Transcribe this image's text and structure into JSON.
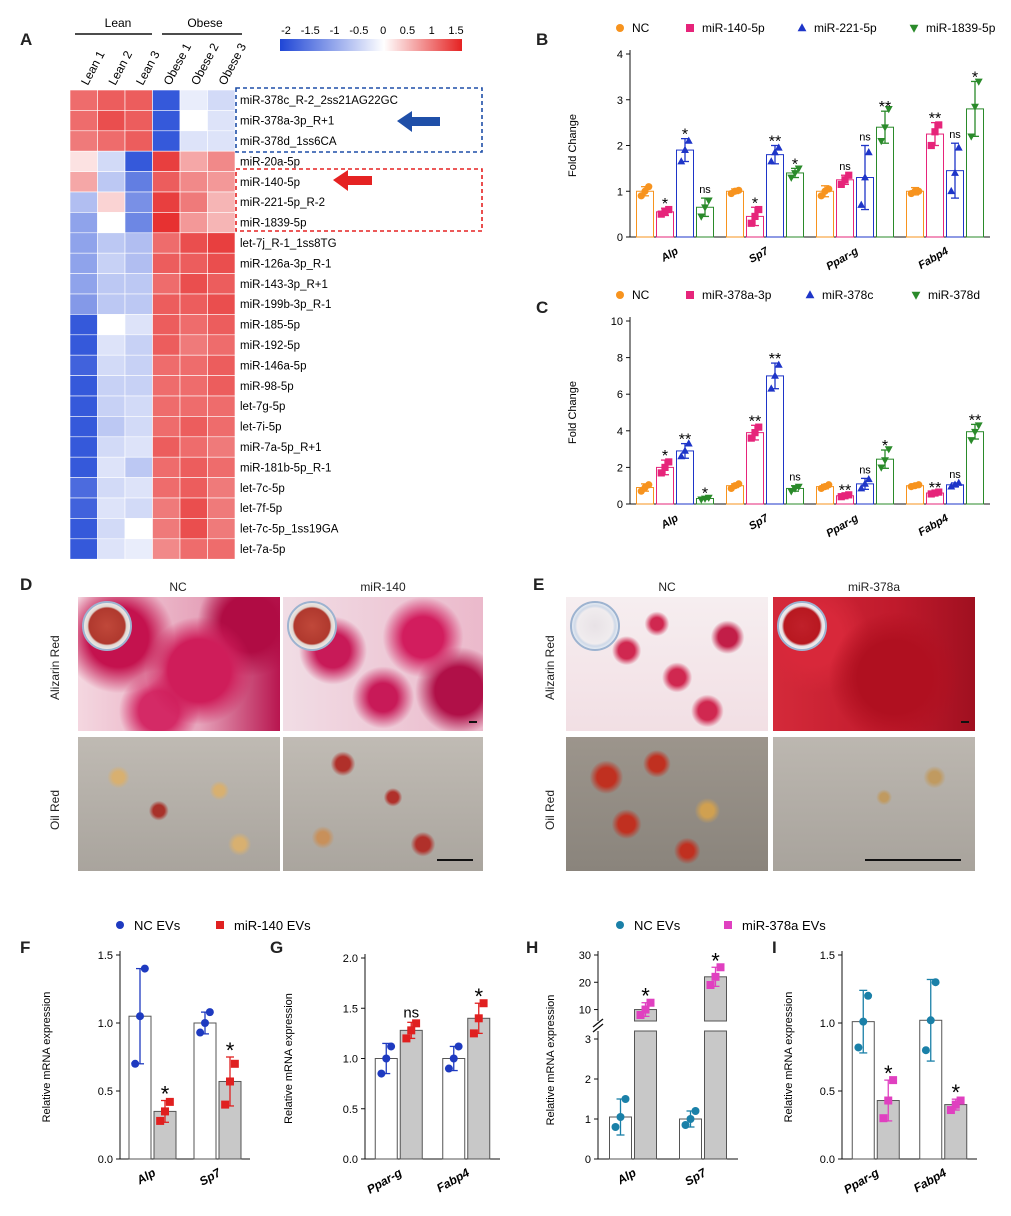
{
  "panel_letters": [
    "A",
    "B",
    "C",
    "D",
    "E",
    "F",
    "G",
    "H",
    "I"
  ],
  "heatmap": {
    "group_labels": [
      "Lean",
      "Obese"
    ],
    "columns": [
      "Lean 1",
      "Lean 2",
      "Lean 3",
      "Obese 1",
      "Obese 2",
      "Obese 3"
    ],
    "scale_ticks": [
      "-2",
      "-1.5",
      "-1",
      "-0.5",
      "0",
      "0.5",
      "1",
      "1.5"
    ],
    "rows": [
      "miR-378c_R-2_2ss21AG22GC",
      "miR-378a-3p_R+1",
      "miR-378d_1ss6CA",
      "miR-20a-5p",
      "miR-140-5p",
      "miR-221-5p_R-2",
      "miR-1839-5p",
      "let-7j_R-1_1ss8TG",
      "miR-126a-3p_R-1",
      "miR-143-3p_R+1",
      "miR-199b-3p_R-1",
      "miR-185-5p",
      "miR-192-5p",
      "miR-146a-5p",
      "miR-98-5p",
      "let-7g-5p",
      "let-7i-5p",
      "miR-7a-5p_R+1",
      "miR-181b-5p_R-1",
      "let-7c-5p",
      "let-7f-5p",
      "let-7c-5p_1ss19GA",
      "let-7a-5p"
    ],
    "values": [
      [
        1.0,
        1.1,
        1.1,
        -1.8,
        -0.2,
        -0.4
      ],
      [
        1.0,
        1.2,
        1.1,
        -1.8,
        0.0,
        -0.3
      ],
      [
        0.9,
        1.0,
        1.1,
        -1.8,
        -0.3,
        -0.3
      ],
      [
        0.2,
        -0.4,
        -1.8,
        1.3,
        0.6,
        0.8
      ],
      [
        0.6,
        -0.6,
        -1.4,
        1.1,
        0.8,
        0.7
      ],
      [
        -0.7,
        0.3,
        -1.2,
        1.3,
        0.9,
        0.5
      ],
      [
        -1.0,
        0.0,
        -1.3,
        1.4,
        0.7,
        0.5
      ],
      [
        -1.0,
        -0.6,
        -0.7,
        1.0,
        1.2,
        1.3
      ],
      [
        -1.0,
        -0.5,
        -0.7,
        1.1,
        1.1,
        1.2
      ],
      [
        -1.0,
        -0.6,
        -0.6,
        1.0,
        1.2,
        1.1
      ],
      [
        -1.1,
        -0.6,
        -0.6,
        1.1,
        1.1,
        1.2
      ],
      [
        -1.8,
        0.0,
        -0.3,
        1.1,
        1.0,
        1.1
      ],
      [
        -1.8,
        -0.3,
        -0.5,
        1.1,
        0.9,
        1.0
      ],
      [
        -1.7,
        -0.4,
        -0.5,
        1.0,
        1.0,
        1.1
      ],
      [
        -1.8,
        -0.5,
        -0.5,
        1.0,
        1.0,
        1.1
      ],
      [
        -1.8,
        -0.5,
        -0.4,
        1.0,
        1.0,
        1.0
      ],
      [
        -1.8,
        -0.6,
        -0.4,
        1.0,
        1.1,
        1.0
      ],
      [
        -1.8,
        -0.4,
        -0.3,
        1.1,
        1.0,
        0.9
      ],
      [
        -1.8,
        -0.3,
        -0.6,
        1.0,
        1.1,
        1.0
      ],
      [
        -1.6,
        -0.4,
        -0.3,
        1.0,
        1.1,
        0.9
      ],
      [
        -1.7,
        -0.3,
        -0.4,
        0.9,
        1.2,
        0.9
      ],
      [
        -1.8,
        -0.4,
        0.0,
        0.9,
        1.2,
        0.9
      ],
      [
        -1.8,
        -0.3,
        -0.2,
        0.8,
        1.0,
        1.0
      ]
    ],
    "colors": {
      "low": "#1f46d6",
      "mid": "#ffffff",
      "high": "#e52222"
    },
    "box_blue_color": "#1f4fa8",
    "box_red_color": "#e52222"
  },
  "photos": {
    "D": {
      "columns": [
        "NC",
        "miR-140"
      ],
      "rows": [
        "Alizarin Red",
        "Oil Red"
      ]
    },
    "E": {
      "columns": [
        "NC",
        "miR-378a"
      ],
      "rows": [
        "Alizarin Red",
        "Oil Red"
      ]
    }
  },
  "chart_data": [
    {
      "panel": "B",
      "type": "bar",
      "ylabel": "Fold Change",
      "ylim": [
        0,
        4
      ],
      "yticks": [
        0,
        1,
        2,
        3,
        4
      ],
      "categories": [
        "Alp",
        "Sp7",
        "Ppar-g",
        "Fabp4"
      ],
      "series": [
        {
          "name": "NC",
          "color": "#f7931e",
          "marker": "circle",
          "values": [
            1.0,
            1.0,
            1.0,
            1.0
          ],
          "err": [
            0.1,
            0.05,
            0.12,
            0.08
          ],
          "points": [
            [
              0.9,
              1.0,
              1.1
            ],
            [
              0.95,
              1.0,
              1.02
            ],
            [
              0.9,
              1.0,
              1.05
            ],
            [
              0.95,
              1.0,
              1.0
            ]
          ],
          "sig": [
            "",
            "",
            "",
            ""
          ]
        },
        {
          "name": "miR-140-5p",
          "color": "#e6247a",
          "marker": "square",
          "values": [
            0.55,
            0.45,
            1.25,
            2.25
          ],
          "err": [
            0.08,
            0.2,
            0.1,
            0.25
          ],
          "points": [
            [
              0.5,
              0.55,
              0.6
            ],
            [
              0.3,
              0.45,
              0.6
            ],
            [
              1.15,
              1.25,
              1.35
            ],
            [
              2.0,
              2.3,
              2.45
            ]
          ],
          "sig": [
            "*",
            "*",
            "ns",
            "**"
          ]
        },
        {
          "name": "miR-221-5p",
          "color": "#1e35c8",
          "marker": "triangle",
          "values": [
            1.9,
            1.8,
            1.3,
            1.45
          ],
          "err": [
            0.25,
            0.2,
            0.7,
            0.6
          ],
          "points": [
            [
              1.65,
              1.9,
              2.1
            ],
            [
              1.65,
              1.85,
              1.95
            ],
            [
              0.7,
              1.3,
              1.85
            ],
            [
              1.0,
              1.4,
              1.95
            ]
          ],
          "sig": [
            "*",
            "**",
            "ns",
            "ns"
          ]
        },
        {
          "name": "miR-1839-5p",
          "color": "#2a8a2a",
          "marker": "tri-down",
          "values": [
            0.65,
            1.4,
            2.4,
            2.8
          ],
          "err": [
            0.2,
            0.1,
            0.35,
            0.6
          ],
          "points": [
            [
              0.45,
              0.65,
              0.8
            ],
            [
              1.3,
              1.4,
              1.5
            ],
            [
              2.1,
              2.4,
              2.8
            ],
            [
              2.2,
              2.85,
              3.4
            ]
          ],
          "sig": [
            "ns",
            "*",
            "**",
            "*"
          ]
        }
      ]
    },
    {
      "panel": "C",
      "type": "bar",
      "ylabel": "Fold Change",
      "ylim": [
        0,
        10
      ],
      "yticks": [
        0,
        2,
        4,
        6,
        8,
        10
      ],
      "categories": [
        "Alp",
        "Sp7",
        "Ppar-g",
        "Fabp4"
      ],
      "series": [
        {
          "name": "NC",
          "color": "#f7931e",
          "marker": "circle",
          "values": [
            0.9,
            1.0,
            0.95,
            1.0
          ],
          "err": [
            0.2,
            0.1,
            0.12,
            0.06
          ],
          "points": [
            [
              0.7,
              0.9,
              1.05
            ],
            [
              0.85,
              1.0,
              1.1
            ],
            [
              0.85,
              0.95,
              1.05
            ],
            [
              0.95,
              1.0,
              1.05
            ]
          ],
          "sig": [
            "",
            "",
            "",
            ""
          ]
        },
        {
          "name": "miR-378a-3p",
          "color": "#e6247a",
          "marker": "square",
          "values": [
            2.0,
            3.9,
            0.45,
            0.6
          ],
          "err": [
            0.4,
            0.4,
            0.06,
            0.05
          ],
          "points": [
            [
              1.7,
              2.0,
              2.3
            ],
            [
              3.6,
              3.9,
              4.2
            ],
            [
              0.4,
              0.45,
              0.5
            ],
            [
              0.55,
              0.6,
              0.65
            ]
          ],
          "sig": [
            "*",
            "**",
            "**",
            "**"
          ]
        },
        {
          "name": "miR-378c",
          "color": "#1e35c8",
          "marker": "triangle",
          "values": [
            2.9,
            7.0,
            1.1,
            1.05
          ],
          "err": [
            0.4,
            0.7,
            0.3,
            0.1
          ],
          "points": [
            [
              2.6,
              2.9,
              3.3
            ],
            [
              6.3,
              7.0,
              7.6
            ],
            [
              0.85,
              1.1,
              1.35
            ],
            [
              0.95,
              1.05,
              1.15
            ]
          ],
          "sig": [
            "**",
            "**",
            "ns",
            "ns"
          ]
        },
        {
          "name": "miR-378d",
          "color": "#2a8a2a",
          "marker": "tri-down",
          "values": [
            0.3,
            0.85,
            2.45,
            3.95
          ],
          "err": [
            0.05,
            0.15,
            0.5,
            0.4
          ],
          "points": [
            [
              0.25,
              0.3,
              0.35
            ],
            [
              0.7,
              0.85,
              0.95
            ],
            [
              2.0,
              2.4,
              3.0
            ],
            [
              3.5,
              3.95,
              4.3
            ]
          ],
          "sig": [
            "*",
            "ns",
            "*",
            "**"
          ]
        }
      ]
    },
    {
      "panel": "F",
      "type": "bar",
      "ylabel": "Relative mRNA expression",
      "ylim": [
        0,
        1.5
      ],
      "yticks": [
        "0.0",
        "0.5",
        "1.0",
        "1.5"
      ],
      "categories": [
        "Alp",
        "Sp7"
      ],
      "series": [
        {
          "name": "NC EVs",
          "color": "#1e3ac0",
          "marker": "circle",
          "values": [
            1.05,
            1.0
          ],
          "err": [
            0.35,
            0.08
          ],
          "points": [
            [
              0.7,
              1.05,
              1.4
            ],
            [
              0.93,
              1.0,
              1.08
            ]
          ],
          "sig": [
            "",
            ""
          ]
        },
        {
          "name": "miR-140 EVs",
          "color": "#e02020",
          "marker": "square",
          "values": [
            0.35,
            0.57
          ],
          "err": [
            0.08,
            0.18
          ],
          "points": [
            [
              0.28,
              0.35,
              0.42
            ],
            [
              0.4,
              0.57,
              0.7
            ]
          ],
          "sig": [
            "*",
            "*"
          ]
        }
      ]
    },
    {
      "panel": "G",
      "type": "bar",
      "ylabel": "Relative mRNA expression",
      "ylim": [
        0,
        2.0
      ],
      "yticks": [
        "0.0",
        "0.5",
        "1.0",
        "1.5",
        "2.0"
      ],
      "categories": [
        "Ppar-g",
        "Fabp4"
      ],
      "series": [
        {
          "name": "NC EVs",
          "color": "#1e3ac0",
          "marker": "circle",
          "values": [
            1.0,
            1.0
          ],
          "err": [
            0.15,
            0.12
          ],
          "points": [
            [
              0.85,
              1.0,
              1.12
            ],
            [
              0.9,
              1.0,
              1.12
            ]
          ],
          "sig": [
            "",
            ""
          ]
        },
        {
          "name": "miR-140 EVs",
          "color": "#e02020",
          "marker": "square",
          "values": [
            1.28,
            1.4
          ],
          "err": [
            0.08,
            0.15
          ],
          "points": [
            [
              1.2,
              1.28,
              1.35
            ],
            [
              1.25,
              1.4,
              1.55
            ]
          ],
          "sig": [
            "ns",
            "*"
          ]
        }
      ]
    },
    {
      "panel": "H",
      "type": "bar",
      "ylabel": "Relative mRNA expression",
      "broken_axis": true,
      "lower_ticks": [
        0,
        1,
        2,
        3
      ],
      "upper_ticks": [
        10,
        20,
        30
      ],
      "categories": [
        "Alp",
        "Sp7"
      ],
      "series": [
        {
          "name": "NC EVs",
          "color": "#1a80a8",
          "marker": "circle",
          "values": [
            1.05,
            1.0
          ],
          "err": [
            0.45,
            0.2
          ],
          "points": [
            [
              0.8,
              1.05,
              1.5
            ],
            [
              0.85,
              1.0,
              1.2
            ]
          ],
          "sig": [
            "",
            ""
          ]
        },
        {
          "name": "miR-378a EVs",
          "color": "#e040c0",
          "marker": "square",
          "values": [
            10.0,
            22.0
          ],
          "err": [
            2.5,
            3.5
          ],
          "points": [
            [
              8.0,
              10.0,
              12.5
            ],
            [
              19.0,
              22.0,
              25.5
            ]
          ],
          "sig": [
            "*",
            "*"
          ]
        }
      ]
    },
    {
      "panel": "I",
      "type": "bar",
      "ylabel": "Relative mRNA expression",
      "ylim": [
        0,
        1.5
      ],
      "yticks": [
        "0.0",
        "0.5",
        "1.0",
        "1.5"
      ],
      "categories": [
        "Ppar-g",
        "Fabp4"
      ],
      "series": [
        {
          "name": "NC EVs",
          "color": "#1a80a8",
          "marker": "circle",
          "values": [
            1.01,
            1.02
          ],
          "err": [
            0.23,
            0.3
          ],
          "points": [
            [
              0.82,
              1.01,
              1.2
            ],
            [
              0.8,
              1.02,
              1.3
            ]
          ],
          "sig": [
            "",
            ""
          ]
        },
        {
          "name": "miR-378a EVs",
          "color": "#e040c0",
          "marker": "square",
          "values": [
            0.43,
            0.4
          ],
          "err": [
            0.15,
            0.04
          ],
          "points": [
            [
              0.3,
              0.43,
              0.58
            ],
            [
              0.36,
              0.4,
              0.43
            ]
          ],
          "sig": [
            "*",
            "*"
          ]
        }
      ]
    }
  ]
}
